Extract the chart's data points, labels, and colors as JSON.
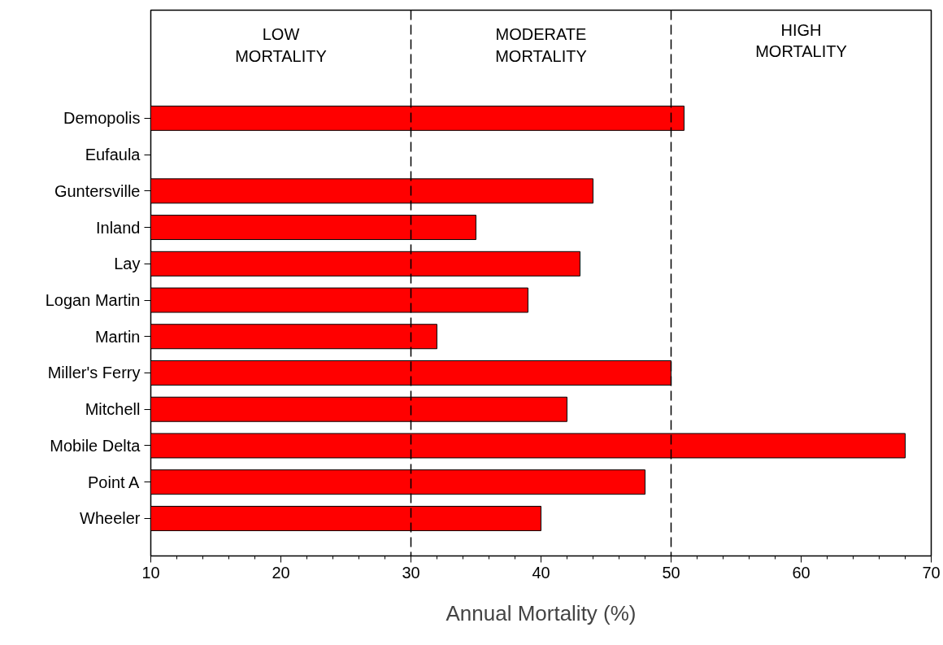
{
  "chart_data": {
    "type": "bar",
    "orientation": "horizontal",
    "xlabel": "Annual Mortality (%)",
    "categories": [
      "Demopolis",
      "Eufaula",
      "Guntersville",
      "Inland",
      "Lay",
      "Logan Martin",
      "Martin",
      "Miller's Ferry",
      "Mitchell",
      "Mobile Delta",
      "Point A",
      "Wheeler"
    ],
    "values": [
      51,
      null,
      44,
      35,
      43,
      39,
      32,
      50,
      42,
      68,
      48,
      40
    ],
    "color": "#ff0000",
    "xlim": [
      10,
      70
    ],
    "xticks": [
      10,
      20,
      30,
      40,
      50,
      60,
      70
    ],
    "ref_lines": [
      {
        "axis": "x",
        "value": 30,
        "line_style": "dashed"
      },
      {
        "axis": "x",
        "value": 50,
        "line_style": "dashed"
      }
    ],
    "annotations": [
      "LOW\nMORTALITY",
      "MODERATE\nMORTALITY",
      "HIGH\nMORTALITY"
    ],
    "grid": false
  }
}
